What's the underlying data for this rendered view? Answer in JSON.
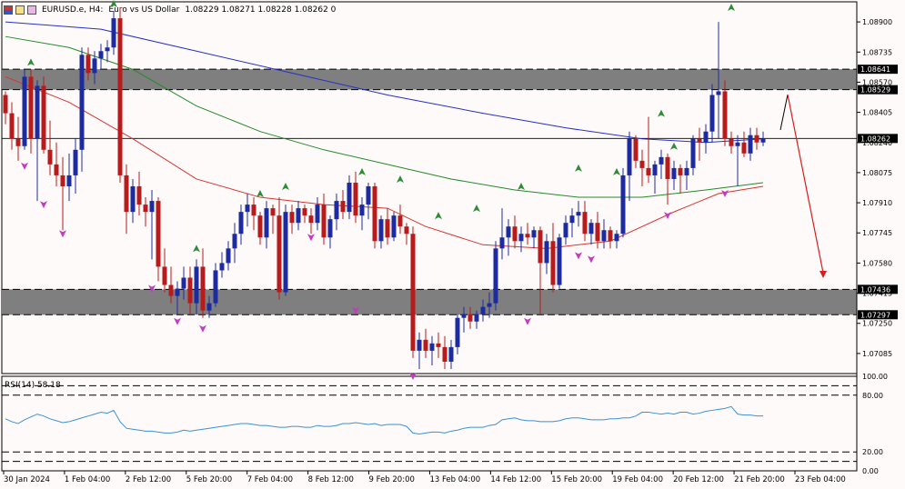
{
  "header": {
    "symbol": "EURUSD.e, H4:",
    "name": "Euro vs US Dollar",
    "ohlc": "1.08229 1.08271 1.08228 1.08262 0"
  },
  "rsi": {
    "title": "RSI(14) 58.18"
  },
  "colors": {
    "background": "#fffafa",
    "bull": "#1c2ba0",
    "bear": "#b71b1b",
    "ma_fast": "#d7352f",
    "ma_mid": "#238a2a",
    "ma_slow": "#2431c5",
    "rsi": "#3a91d8",
    "zone": "#7f7f7f",
    "arrow": "#d61f1f",
    "fractal_up": "#2e8b3a",
    "fractal_down": "#c43ac4"
  },
  "chart_data": {
    "type": "candlestick",
    "ylim": [
      1.06975,
      1.0901
    ],
    "price_ticks": [
      "1.08900",
      "1.08735",
      "1.08570",
      "1.08405",
      "1.08240",
      "1.08075",
      "1.07910",
      "1.07745",
      "1.07580",
      "1.07415",
      "1.07250",
      "1.07085"
    ],
    "highlighted_prices": [
      "1.08641",
      "1.08529",
      "1.08262",
      "1.07436",
      "1.07297"
    ],
    "current_price": 1.08262,
    "zones": [
      {
        "top": 1.08641,
        "bottom": 1.08529
      },
      {
        "top": 1.07436,
        "bottom": 1.07297
      }
    ],
    "time_labels": [
      "30 Jan 2024",
      "1 Feb 04:00",
      "2 Feb 12:00",
      "5 Feb 20:00",
      "7 Feb 04:00",
      "8 Feb 12:00",
      "9 Feb 20:00",
      "13 Feb 04:00",
      "14 Feb 12:00",
      "15 Feb 20:00",
      "19 Feb 04:00",
      "20 Feb 12:00",
      "21 Feb 20:00",
      "23 Feb 04:00"
    ],
    "candles": [
      [
        1.085,
        1.0852,
        1.0834,
        1.084
      ],
      [
        1.084,
        1.0846,
        1.082,
        1.0826
      ],
      [
        1.0826,
        1.0838,
        1.0814,
        1.0822
      ],
      [
        1.0822,
        1.0864,
        1.082,
        1.086
      ],
      [
        1.086,
        1.0864,
        1.0818,
        1.0826
      ],
      [
        1.0826,
        1.0858,
        1.0792,
        1.0855
      ],
      [
        1.0855,
        1.086,
        1.0818,
        1.082
      ],
      [
        1.082,
        1.0836,
        1.0806,
        1.0812
      ],
      [
        1.0812,
        1.0824,
        1.08,
        1.0806
      ],
      [
        1.0806,
        1.0816,
        1.0776,
        1.08
      ],
      [
        1.08,
        1.0818,
        1.0792,
        1.0806
      ],
      [
        1.0806,
        1.0826,
        1.0796,
        1.082
      ],
      [
        1.082,
        1.0876,
        1.0808,
        1.0872
      ],
      [
        1.0872,
        1.0876,
        1.0858,
        1.0862
      ],
      [
        1.0862,
        1.0874,
        1.0856,
        1.087
      ],
      [
        1.087,
        1.0878,
        1.0864,
        1.0874
      ],
      [
        1.0874,
        1.088,
        1.0868,
        1.0876
      ],
      [
        1.0876,
        1.0896,
        1.0872,
        1.0892
      ],
      [
        1.0892,
        1.0898,
        1.0802,
        1.0806
      ],
      [
        1.0806,
        1.0812,
        1.0774,
        1.0786
      ],
      [
        1.0786,
        1.0804,
        1.078,
        1.08
      ],
      [
        1.08,
        1.0808,
        1.0784,
        1.079
      ],
      [
        1.079,
        1.0794,
        1.0778,
        1.0786
      ],
      [
        1.0786,
        1.0798,
        1.076,
        1.0792
      ],
      [
        1.0792,
        1.0794,
        1.0748,
        1.0756
      ],
      [
        1.0756,
        1.0766,
        1.0742,
        1.0746
      ],
      [
        1.0746,
        1.0756,
        1.0736,
        1.074
      ],
      [
        1.074,
        1.0748,
        1.073,
        1.0744
      ],
      [
        1.0744,
        1.0756,
        1.0738,
        1.075
      ],
      [
        1.075,
        1.0756,
        1.073,
        1.0736
      ],
      [
        1.0736,
        1.076,
        1.073,
        1.0756
      ],
      [
        1.0756,
        1.0766,
        1.0728,
        1.0732
      ],
      [
        1.0732,
        1.074,
        1.0728,
        1.0736
      ],
      [
        1.0736,
        1.0758,
        1.0734,
        1.0754
      ],
      [
        1.0754,
        1.0764,
        1.075,
        1.0758
      ],
      [
        1.0758,
        1.077,
        1.0754,
        1.0766
      ],
      [
        1.0766,
        1.078,
        1.0758,
        1.0774
      ],
      [
        1.0774,
        1.079,
        1.0768,
        1.0786
      ],
      [
        1.0786,
        1.0796,
        1.0778,
        1.079
      ],
      [
        1.079,
        1.0794,
        1.0776,
        1.0784
      ],
      [
        1.0784,
        1.0786,
        1.0768,
        1.0772
      ],
      [
        1.0772,
        1.0792,
        1.0766,
        1.0788
      ],
      [
        1.0788,
        1.079,
        1.0774,
        1.0784
      ],
      [
        1.0784,
        1.0794,
        1.0738,
        1.0742
      ],
      [
        1.0742,
        1.079,
        1.074,
        1.0786
      ],
      [
        1.0786,
        1.079,
        1.0774,
        1.078
      ],
      [
        1.078,
        1.0792,
        1.0776,
        1.0788
      ],
      [
        1.0788,
        1.079,
        1.078,
        1.0784
      ],
      [
        1.0784,
        1.0788,
        1.0774,
        1.078
      ],
      [
        1.078,
        1.0794,
        1.0776,
        1.079
      ],
      [
        1.079,
        1.0796,
        1.0768,
        1.0772
      ],
      [
        1.0772,
        1.0784,
        1.0766,
        1.0782
      ],
      [
        1.0782,
        1.0796,
        1.0776,
        1.0792
      ],
      [
        1.0792,
        1.0798,
        1.0782,
        1.0786
      ],
      [
        1.0786,
        1.0806,
        1.0782,
        1.0802
      ],
      [
        1.0802,
        1.0808,
        1.078,
        1.0784
      ],
      [
        1.0784,
        1.0794,
        1.0776,
        1.079
      ],
      [
        1.079,
        1.0802,
        1.0782,
        1.08
      ],
      [
        1.08,
        1.0802,
        1.0766,
        1.077
      ],
      [
        1.077,
        1.0784,
        1.0766,
        1.0782
      ],
      [
        1.0782,
        1.0788,
        1.0768,
        1.0772
      ],
      [
        1.0772,
        1.0786,
        1.077,
        1.0784
      ],
      [
        1.0784,
        1.079,
        1.0774,
        1.0778
      ],
      [
        1.0778,
        1.078,
        1.0768,
        1.0774
      ],
      [
        1.0774,
        1.0778,
        1.0706,
        1.071
      ],
      [
        1.071,
        1.072,
        1.07,
        1.0716
      ],
      [
        1.0716,
        1.0722,
        1.0706,
        1.071
      ],
      [
        1.071,
        1.0718,
        1.0702,
        1.0714
      ],
      [
        1.0714,
        1.072,
        1.0706,
        1.0712
      ],
      [
        1.0712,
        1.0718,
        1.07,
        1.0704
      ],
      [
        1.0704,
        1.0716,
        1.07,
        1.0712
      ],
      [
        1.0712,
        1.073,
        1.0708,
        1.0728
      ],
      [
        1.0728,
        1.0734,
        1.072,
        1.073
      ],
      [
        1.073,
        1.0734,
        1.0722,
        1.0726
      ],
      [
        1.0726,
        1.0732,
        1.0722,
        1.073
      ],
      [
        1.073,
        1.0738,
        1.0726,
        1.0734
      ],
      [
        1.0734,
        1.0742,
        1.0728,
        1.0736
      ],
      [
        1.0736,
        1.077,
        1.0732,
        1.0766
      ],
      [
        1.0766,
        1.0788,
        1.076,
        1.0772
      ],
      [
        1.0772,
        1.0782,
        1.0762,
        1.0778
      ],
      [
        1.0778,
        1.0784,
        1.0766,
        1.077
      ],
      [
        1.077,
        1.0778,
        1.0764,
        1.0774
      ],
      [
        1.0774,
        1.078,
        1.0768,
        1.0772
      ],
      [
        1.0772,
        1.0778,
        1.0766,
        1.0776
      ],
      [
        1.0776,
        1.0778,
        1.073,
        1.0758
      ],
      [
        1.0758,
        1.0774,
        1.0752,
        1.077
      ],
      [
        1.077,
        1.078,
        1.0742,
        1.0746
      ],
      [
        1.0746,
        1.0774,
        1.0744,
        1.0772
      ],
      [
        1.0772,
        1.0784,
        1.0768,
        1.078
      ],
      [
        1.078,
        1.0788,
        1.0772,
        1.0784
      ],
      [
        1.0784,
        1.0792,
        1.0778,
        1.0786
      ],
      [
        1.0786,
        1.0792,
        1.077,
        1.0774
      ],
      [
        1.0774,
        1.0782,
        1.0768,
        1.078
      ],
      [
        1.078,
        1.0786,
        1.0766,
        1.077
      ],
      [
        1.077,
        1.0782,
        1.0766,
        1.0776
      ],
      [
        1.0776,
        1.0778,
        1.0766,
        1.077
      ],
      [
        1.077,
        1.0776,
        1.0766,
        1.0774
      ],
      [
        1.0774,
        1.081,
        1.0772,
        1.0806
      ],
      [
        1.0806,
        1.083,
        1.0792,
        1.0826
      ],
      [
        1.0826,
        1.0828,
        1.081,
        1.0814
      ],
      [
        1.0814,
        1.082,
        1.08,
        1.081
      ],
      [
        1.081,
        1.0838,
        1.0802,
        1.0806
      ],
      [
        1.0806,
        1.0814,
        1.0796,
        1.0812
      ],
      [
        1.0812,
        1.082,
        1.0804,
        1.0816
      ],
      [
        1.0816,
        1.0818,
        1.079,
        1.0804
      ],
      [
        1.0804,
        1.0814,
        1.0798,
        1.081
      ],
      [
        1.081,
        1.0812,
        1.0796,
        1.0806
      ],
      [
        1.0806,
        1.0814,
        1.0798,
        1.081
      ],
      [
        1.081,
        1.0828,
        1.0806,
        1.0826
      ],
      [
        1.0826,
        1.0832,
        1.0814,
        1.0824
      ],
      [
        1.0824,
        1.0834,
        1.0818,
        1.083
      ],
      [
        1.083,
        1.0856,
        1.0824,
        1.085
      ],
      [
        1.085,
        1.089,
        1.0826,
        1.0852
      ],
      [
        1.0852,
        1.0858,
        1.0822,
        1.0826
      ],
      [
        1.0826,
        1.083,
        1.0818,
        1.0822
      ],
      [
        1.0822,
        1.0828,
        1.08,
        1.0824
      ],
      [
        1.0824,
        1.083,
        1.0816,
        1.0818
      ],
      [
        1.0818,
        1.0832,
        1.0814,
        1.0828
      ],
      [
        1.0828,
        1.0832,
        1.082,
        1.0824
      ],
      [
        1.0824,
        1.083,
        1.0822,
        1.0826
      ]
    ],
    "moving_averages": [
      {
        "role": "fast",
        "points": [
          [
            0,
            1.086
          ],
          [
            10,
            1.0846
          ],
          [
            20,
            1.0826
          ],
          [
            30,
            1.0804
          ],
          [
            40,
            1.0794
          ],
          [
            50,
            1.079
          ],
          [
            60,
            1.0788
          ],
          [
            66,
            1.0778
          ],
          [
            75,
            1.0768
          ],
          [
            85,
            1.0766
          ],
          [
            95,
            1.077
          ],
          [
            105,
            1.0786
          ],
          [
            112,
            1.0796
          ],
          [
            119,
            1.08
          ]
        ]
      },
      {
        "role": "mid",
        "points": [
          [
            0,
            1.0882
          ],
          [
            10,
            1.0876
          ],
          [
            20,
            1.0864
          ],
          [
            30,
            1.0844
          ],
          [
            40,
            1.083
          ],
          [
            50,
            1.082
          ],
          [
            60,
            1.0812
          ],
          [
            70,
            1.0804
          ],
          [
            80,
            1.0798
          ],
          [
            90,
            1.0794
          ],
          [
            100,
            1.0794
          ],
          [
            110,
            1.0798
          ],
          [
            119,
            1.0802
          ]
        ]
      },
      {
        "role": "slow",
        "points": [
          [
            0,
            1.089
          ],
          [
            15,
            1.0886
          ],
          [
            30,
            1.0874
          ],
          [
            45,
            1.0862
          ],
          [
            60,
            1.085
          ],
          [
            75,
            1.084
          ],
          [
            88,
            1.0832
          ],
          [
            100,
            1.0826
          ],
          [
            110,
            1.0824
          ],
          [
            119,
            1.0826
          ]
        ]
      }
    ],
    "fractals_up": [
      [
        4,
        1.0868
      ],
      [
        17,
        1.09
      ],
      [
        30,
        1.0766
      ],
      [
        40,
        1.0796
      ],
      [
        44,
        1.08
      ],
      [
        56,
        1.0808
      ],
      [
        62,
        1.0804
      ],
      [
        68,
        1.0784
      ],
      [
        74,
        1.0788
      ],
      [
        81,
        1.08
      ],
      [
        90,
        1.081
      ],
      [
        96,
        1.0808
      ],
      [
        103,
        1.084
      ],
      [
        105,
        1.0822
      ],
      [
        114,
        1.0898
      ]
    ],
    "fractals_down": [
      [
        3,
        1.0811
      ],
      [
        6,
        1.079
      ],
      [
        9,
        1.0774
      ],
      [
        23,
        1.0744
      ],
      [
        27,
        1.0726
      ],
      [
        31,
        1.0722
      ],
      [
        48,
        1.0772
      ],
      [
        55,
        1.0732
      ],
      [
        64,
        1.0696
      ],
      [
        82,
        1.0726
      ],
      [
        90,
        1.0762
      ],
      [
        92,
        1.076
      ],
      [
        104,
        1.0784
      ],
      [
        113,
        1.0796
      ]
    ],
    "projection": [
      [
        858,
        143
      ],
      [
        866,
        104
      ],
      [
        905,
        306
      ]
    ],
    "rsi_ylim": [
      0,
      100
    ],
    "rsi_levels": [
      "100.00",
      "80.00",
      "20.00",
      "0.00"
    ],
    "rsi_values": [
      55,
      52,
      50,
      54,
      57,
      60,
      58,
      55,
      53,
      51,
      52,
      54,
      56,
      58,
      60,
      62,
      61,
      64,
      52,
      45,
      44,
      43,
      42,
      42,
      41,
      40,
      40,
      41,
      43,
      42,
      43,
      44,
      45,
      46,
      47,
      48,
      49,
      50,
      50,
      49,
      48,
      48,
      47,
      46,
      46,
      47,
      47,
      46,
      46,
      48,
      47,
      47,
      48,
      50,
      50,
      51,
      50,
      49,
      50,
      48,
      49,
      49,
      49,
      47,
      40,
      39,
      40,
      41,
      41,
      40,
      42,
      43,
      45,
      46,
      46,
      46,
      48,
      49,
      54,
      55,
      56,
      54,
      53,
      53,
      52,
      52,
      52,
      53,
      55,
      56,
      56,
      55,
      54,
      54,
      54,
      55,
      55,
      56,
      56,
      58,
      62,
      62,
      61,
      60,
      61,
      60,
      62,
      62,
      60,
      61,
      63,
      64,
      65,
      66,
      68,
      60,
      59,
      59,
      58,
      58
    ]
  }
}
